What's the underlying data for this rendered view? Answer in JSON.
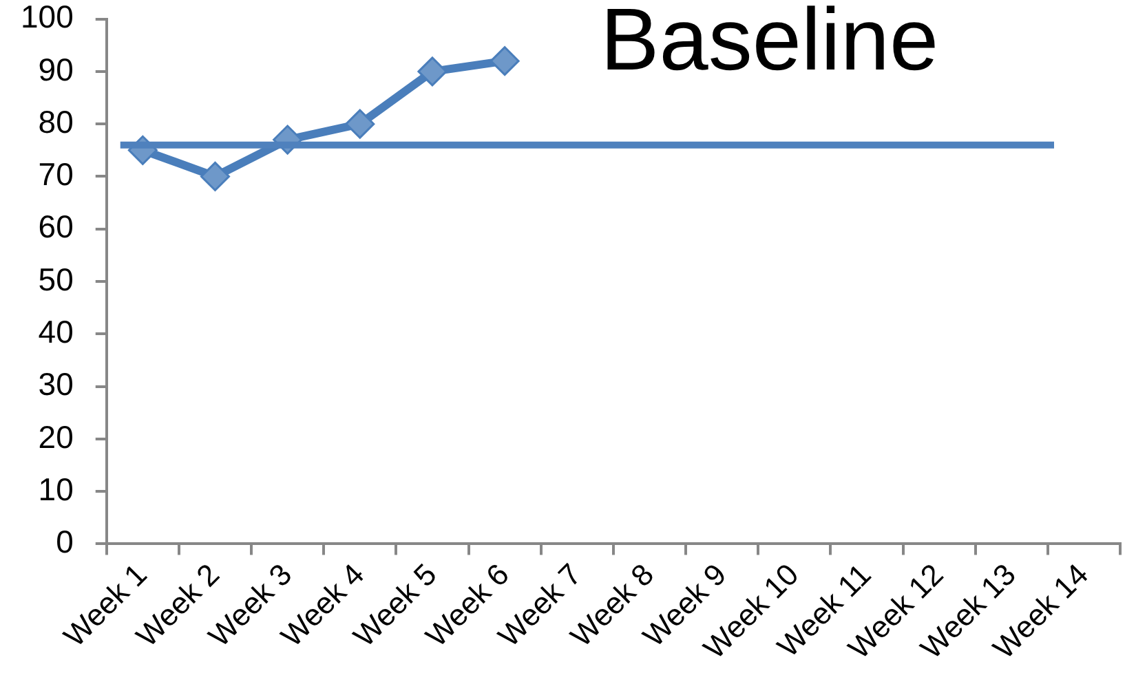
{
  "chart_data": {
    "type": "line",
    "title": "Baseline",
    "categories": [
      "Week 1",
      "Week 2",
      "Week 3",
      "Week 4",
      "Week 5",
      "Week 6",
      "Week 7",
      "Week 8",
      "Week 9",
      "Week 10",
      "Week 11",
      "Week 12",
      "Week 13",
      "Week 14"
    ],
    "series": [
      {
        "color": "#4a7ebb",
        "values": [
          75,
          70,
          77,
          80,
          90,
          92,
          null,
          null,
          null,
          null,
          null,
          null,
          null,
          null
        ]
      }
    ],
    "ylim": [
      0,
      100
    ],
    "yticks": [
      0,
      10,
      20,
      30,
      40,
      50,
      60,
      70,
      80,
      90,
      100
    ],
    "grid": false,
    "legend": false,
    "marker": "diamond",
    "line_style": "solid",
    "ref_lines": [
      {
        "axis": "y",
        "value": 76,
        "color": "#4f81bd"
      }
    ]
  }
}
